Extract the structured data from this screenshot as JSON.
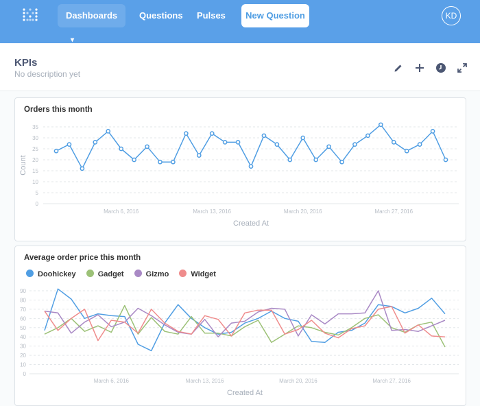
{
  "nav": {
    "logo_icon": "metabase-logo-icon",
    "dashboards_label": "Dashboards",
    "questions_label": "Questions",
    "pulses_label": "Pulses",
    "new_question_label": "New Question",
    "avatar_initials": "KD"
  },
  "dashboard": {
    "title": "KPIs",
    "description": "No description yet",
    "actions": [
      "pencil-icon",
      "plus-icon",
      "clock-icon",
      "expand-icon"
    ]
  },
  "cards": {
    "orders": {
      "title": "Orders this month"
    },
    "avg_price": {
      "title": "Average order price this month"
    }
  },
  "chart_data": [
    {
      "type": "line",
      "title": "Orders this month",
      "xlabel": "Created At",
      "ylabel": "Count",
      "ylim": [
        0,
        35
      ],
      "yticks": [
        "0",
        "5",
        "10",
        "15",
        "20",
        "25",
        "30",
        "35"
      ],
      "x_ticks": [
        "March 6, 2016",
        "March 13, 2016",
        "March 20, 2016",
        "March 27, 2016"
      ],
      "x_tick_index": [
        5,
        12,
        19,
        26
      ],
      "x": [
        "Mar 1",
        "Mar 2",
        "Mar 3",
        "Mar 4",
        "Mar 5",
        "Mar 6",
        "Mar 7",
        "Mar 8",
        "Mar 9",
        "Mar 10",
        "Mar 11",
        "Mar 12",
        "Mar 13",
        "Mar 14",
        "Mar 15",
        "Mar 16",
        "Mar 17",
        "Mar 18",
        "Mar 19",
        "Mar 20",
        "Mar 21",
        "Mar 22",
        "Mar 23",
        "Mar 24",
        "Mar 25",
        "Mar 26",
        "Mar 27",
        "Mar 28",
        "Mar 29",
        "Mar 30",
        "Mar 31"
      ],
      "series": [
        {
          "color": "#509ee3",
          "values": [
            24,
            27,
            16,
            28,
            33,
            25,
            20,
            26,
            19,
            19,
            32,
            22,
            32,
            28,
            28,
            17,
            31,
            27,
            20,
            30,
            20,
            26,
            19,
            27,
            31,
            36,
            28,
            24,
            27,
            33,
            20
          ]
        }
      ],
      "grid": true
    },
    {
      "type": "line",
      "title": "Average order price this month",
      "xlabel": "Created At",
      "ylim": [
        0,
        90
      ],
      "yticks": [
        "0",
        "10",
        "20",
        "30",
        "40",
        "50",
        "60",
        "70",
        "80",
        "90"
      ],
      "x_ticks": [
        "March 6, 2016",
        "March 13, 2016",
        "March 20, 2016",
        "March 27, 2016"
      ],
      "x_tick_index": [
        5,
        12,
        19,
        26
      ],
      "series": [
        {
          "name": "Doohickey",
          "color": "#509ee3",
          "values": [
            47,
            92,
            81,
            60,
            65,
            63,
            62,
            32,
            25,
            55,
            75,
            60,
            50,
            43,
            45,
            55,
            60,
            68,
            60,
            57,
            35,
            34,
            45,
            47,
            55,
            75,
            73,
            66,
            71,
            82,
            65
          ]
        },
        {
          "name": "Gadget",
          "color": "#9cc177",
          "values": [
            43,
            50,
            60,
            46,
            52,
            45,
            74,
            43,
            61,
            46,
            43,
            62,
            44,
            44,
            41,
            51,
            58,
            34,
            43,
            52,
            50,
            45,
            42,
            50,
            60,
            64,
            50,
            45,
            53,
            56,
            29
          ]
        },
        {
          "name": "Gizmo",
          "color": "#a989c5",
          "values": [
            68,
            66,
            44,
            56,
            64,
            51,
            56,
            71,
            63,
            53,
            45,
            43,
            59,
            40,
            55,
            57,
            67,
            71,
            70,
            41,
            64,
            54,
            65,
            65,
            66,
            90,
            47,
            48,
            46,
            52,
            58
          ]
        },
        {
          "name": "Widget",
          "color": "#ef8c8c",
          "values": [
            68,
            47,
            60,
            70,
            36,
            58,
            56,
            44,
            70,
            55,
            46,
            43,
            63,
            59,
            41,
            66,
            69,
            69,
            43,
            48,
            58,
            44,
            39,
            49,
            52,
            70,
            73,
            44,
            53,
            41,
            40
          ]
        }
      ],
      "grid": true
    }
  ]
}
